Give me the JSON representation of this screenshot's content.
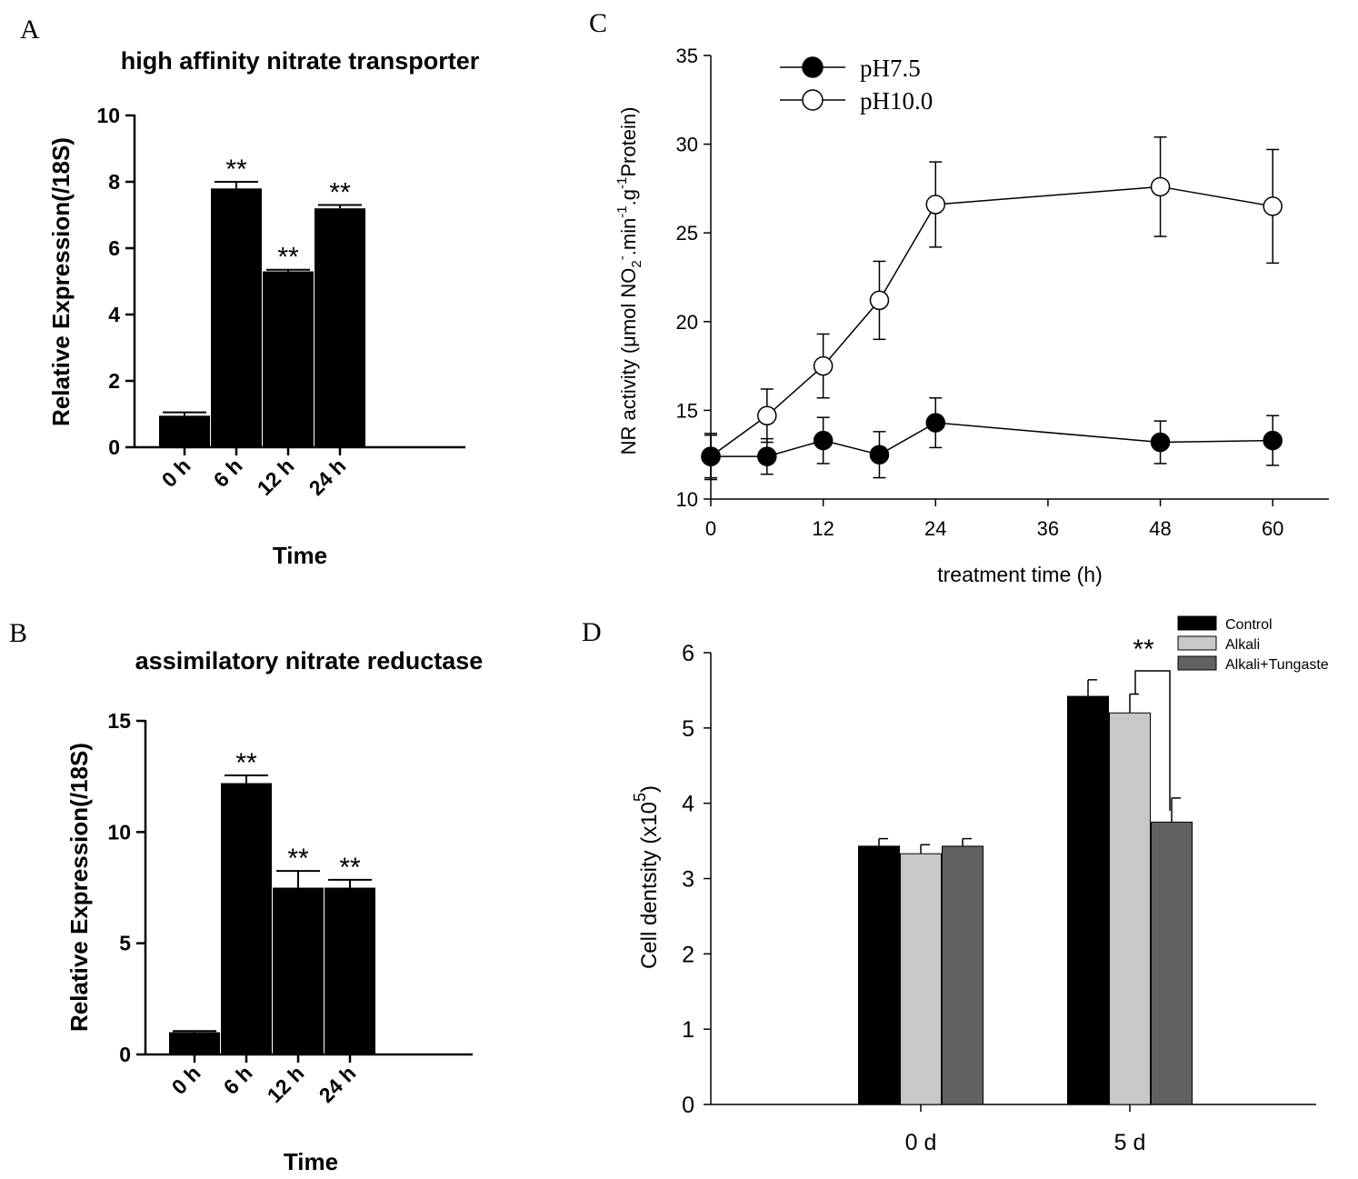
{
  "chart_data": [
    {
      "panel": "A",
      "type": "bar",
      "title": "high affinity nitrate transporter",
      "xlabel": "Time",
      "ylabel": "Relative  Expression(/18S)",
      "ylim": [
        0,
        10
      ],
      "yticks": [
        "0",
        "2",
        "4",
        "6",
        "8",
        "10"
      ],
      "categories": [
        "0 h",
        "6 h",
        "12 h",
        "24 h"
      ],
      "values": [
        0.95,
        7.8,
        5.3,
        7.2
      ],
      "errors": [
        0.1,
        0.2,
        0.05,
        0.1
      ],
      "significance": [
        "",
        "**",
        "**",
        "**"
      ],
      "color": "#000000"
    },
    {
      "panel": "B",
      "type": "bar",
      "title": "assimilatory nitrate reductase",
      "xlabel": "Time",
      "ylabel": "Relative  Expression(/18S)",
      "ylim": [
        0,
        15
      ],
      "yticks": [
        "0",
        "5",
        "10",
        "15"
      ],
      "categories": [
        "0 h",
        "6 h",
        "12 h",
        "24 h"
      ],
      "values": [
        1.0,
        12.2,
        7.5,
        7.5
      ],
      "errors": [
        0.05,
        0.35,
        0.75,
        0.35
      ],
      "significance": [
        "",
        "**",
        "**",
        "**"
      ],
      "color": "#000000"
    },
    {
      "panel": "C",
      "type": "line",
      "xlabel": "treatment time (h)",
      "ylabel_parts": [
        "NR activity (μmol NO",
        "2",
        "-",
        ".min",
        "-1",
        ".g",
        "-1",
        "Protein)"
      ],
      "xlim": [
        0,
        66
      ],
      "ylim": [
        10,
        35
      ],
      "xticks": [
        "0",
        "12",
        "24",
        "36",
        "48",
        "60"
      ],
      "yticks": [
        "10",
        "15",
        "20",
        "25",
        "30",
        "35"
      ],
      "series": [
        {
          "name": "pH7.5",
          "marker": "filled-circle",
          "x": [
            0,
            6,
            12,
            18,
            24,
            48,
            60
          ],
          "y": [
            12.4,
            12.4,
            13.3,
            12.5,
            14.3,
            13.2,
            13.3
          ],
          "err": [
            1.2,
            1.0,
            1.3,
            1.3,
            1.4,
            1.2,
            1.4
          ]
        },
        {
          "name": "pH10.0",
          "marker": "open-circle",
          "x": [
            0,
            6,
            12,
            18,
            24,
            48,
            60
          ],
          "y": [
            12.4,
            14.7,
            17.5,
            21.2,
            26.6,
            27.6,
            26.5
          ],
          "err": [
            1.3,
            1.5,
            1.8,
            2.2,
            2.4,
            2.8,
            3.2
          ]
        }
      ]
    },
    {
      "panel": "D",
      "type": "bar",
      "xlabel": "",
      "ylabel": "Cell dentsity (x10",
      "ylabel_sup": "5",
      "ylabel_end": ")",
      "ylim": [
        0,
        6
      ],
      "yticks": [
        "0",
        "1",
        "2",
        "3",
        "4",
        "5",
        "6"
      ],
      "categories": [
        "0 d",
        "5 d"
      ],
      "series": [
        {
          "name": "Control",
          "values": [
            3.43,
            5.42
          ],
          "errors": [
            0.1,
            0.22
          ],
          "color": "#000000"
        },
        {
          "name": "Alkali",
          "values": [
            3.33,
            5.2
          ],
          "errors": [
            0.12,
            0.25
          ],
          "color": "#c8c8c8"
        },
        {
          "name": "Alkali+Tungaste",
          "values": [
            3.43,
            3.75
          ],
          "errors": [
            0.1,
            0.32
          ],
          "color": "#616161"
        }
      ],
      "significance": "**"
    }
  ],
  "panel_labels": [
    "A",
    "B",
    "C",
    "D"
  ]
}
